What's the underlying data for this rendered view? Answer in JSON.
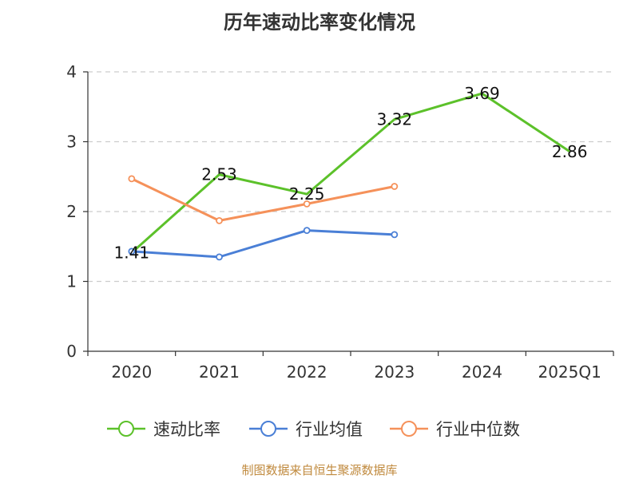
{
  "title": "历年速动比率变化情况",
  "source": "制图数据来自恒生聚源数据库",
  "colors": {
    "axis": "#333333",
    "grid": "#cccccc",
    "text": "#333333"
  },
  "chart_data": {
    "type": "line",
    "categories": [
      "2020",
      "2021",
      "2022",
      "2023",
      "2024",
      "2025Q1"
    ],
    "ylim": [
      0,
      4
    ],
    "yticks": [
      0,
      1,
      2,
      3,
      4
    ],
    "grid": true,
    "legend_position": "bottom",
    "series": [
      {
        "name": "速动比率",
        "color": "#5cc12a",
        "values": [
          1.41,
          2.53,
          2.25,
          3.32,
          3.69,
          2.86
        ],
        "labels": [
          "1.41",
          "2.53",
          "2.25",
          "3.32",
          "3.69",
          "2.86"
        ],
        "show_markers": false
      },
      {
        "name": "行业均值",
        "color": "#4a7fd6",
        "values": [
          1.43,
          1.35,
          1.73,
          1.67,
          null,
          null
        ],
        "show_markers": true
      },
      {
        "name": "行业中位数",
        "color": "#f5915a",
        "values": [
          2.47,
          1.87,
          2.11,
          2.36,
          null,
          null
        ],
        "show_markers": true
      }
    ]
  }
}
